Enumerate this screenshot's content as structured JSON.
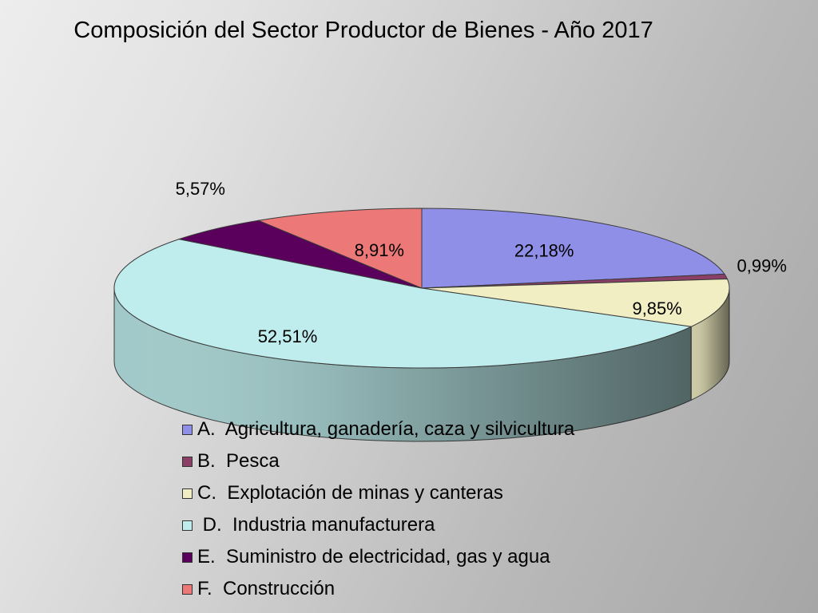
{
  "chart_data": {
    "type": "pie",
    "title": "Composición del Sector Productor de Bienes  - Año 2017",
    "categories": [
      "A.  Agricultura, ganadería, caza y silvicultura",
      "B.  Pesca",
      "C.  Explotación de minas y canteras",
      " D.  Industria manufacturera",
      "E.  Suministro de electricidad, gas y agua",
      "F.  Construcción"
    ],
    "values": [
      22.18,
      0.99,
      9.85,
      52.51,
      5.57,
      8.91
    ],
    "value_labels": [
      "22,18%",
      "0,99%",
      "9,85%",
      "52,51%",
      "5,57%",
      "8,91%"
    ],
    "colors": [
      "#8f8fe8",
      "#8b3f66",
      "#f0eec2",
      "#bfeced",
      "#5a005c",
      "#ec7878"
    ],
    "legend_position": "bottom",
    "perspective": "3d"
  }
}
